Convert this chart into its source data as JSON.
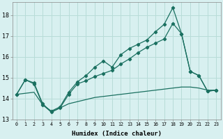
{
  "xlabel": "Humidex (Indice chaleur)",
  "background_color": "#d8f0f0",
  "line_color": "#1a7060",
  "grid_color": "#b8dcd8",
  "xlim": [
    -0.5,
    23.5
  ],
  "ylim": [
    13.0,
    18.6
  ],
  "yticks": [
    13,
    14,
    15,
    16,
    17,
    18
  ],
  "xticks": [
    0,
    1,
    2,
    3,
    4,
    5,
    6,
    7,
    8,
    9,
    10,
    11,
    12,
    13,
    14,
    15,
    16,
    17,
    18,
    19,
    20,
    21,
    22,
    23
  ],
  "s1_x": [
    0,
    1,
    2,
    3,
    4,
    5,
    6,
    7,
    8,
    9,
    10,
    11,
    12,
    13,
    14,
    15,
    16,
    17,
    18,
    19,
    20,
    21,
    22,
    23
  ],
  "s1_y": [
    14.2,
    14.9,
    14.7,
    13.7,
    13.4,
    13.6,
    14.3,
    14.8,
    15.1,
    15.5,
    15.8,
    15.5,
    16.1,
    16.4,
    16.6,
    16.8,
    17.2,
    17.55,
    18.35,
    17.1,
    15.3,
    15.1,
    14.35,
    14.4
  ],
  "s2_x": [
    0,
    1,
    2,
    3,
    4,
    5,
    6,
    7,
    8,
    9,
    10,
    11,
    12,
    13,
    14,
    15,
    16,
    17,
    18,
    19,
    20,
    21,
    22,
    23
  ],
  "s2_y": [
    14.2,
    14.9,
    14.75,
    13.75,
    13.35,
    13.55,
    14.2,
    14.7,
    14.85,
    15.05,
    15.2,
    15.35,
    15.65,
    15.9,
    16.2,
    16.45,
    16.65,
    16.85,
    17.6,
    17.1,
    15.3,
    15.1,
    14.35,
    14.4
  ],
  "s3_x": [
    0,
    1,
    2,
    3,
    4,
    5,
    6,
    7,
    8,
    9,
    10,
    11,
    12,
    13,
    14,
    15,
    16,
    17,
    18,
    19,
    20,
    21,
    22,
    23
  ],
  "s3_y": [
    14.2,
    14.25,
    14.3,
    13.7,
    13.35,
    13.55,
    13.75,
    13.85,
    13.95,
    14.05,
    14.1,
    14.15,
    14.2,
    14.25,
    14.3,
    14.35,
    14.4,
    14.45,
    14.5,
    14.55,
    14.55,
    14.5,
    14.4,
    14.4
  ]
}
